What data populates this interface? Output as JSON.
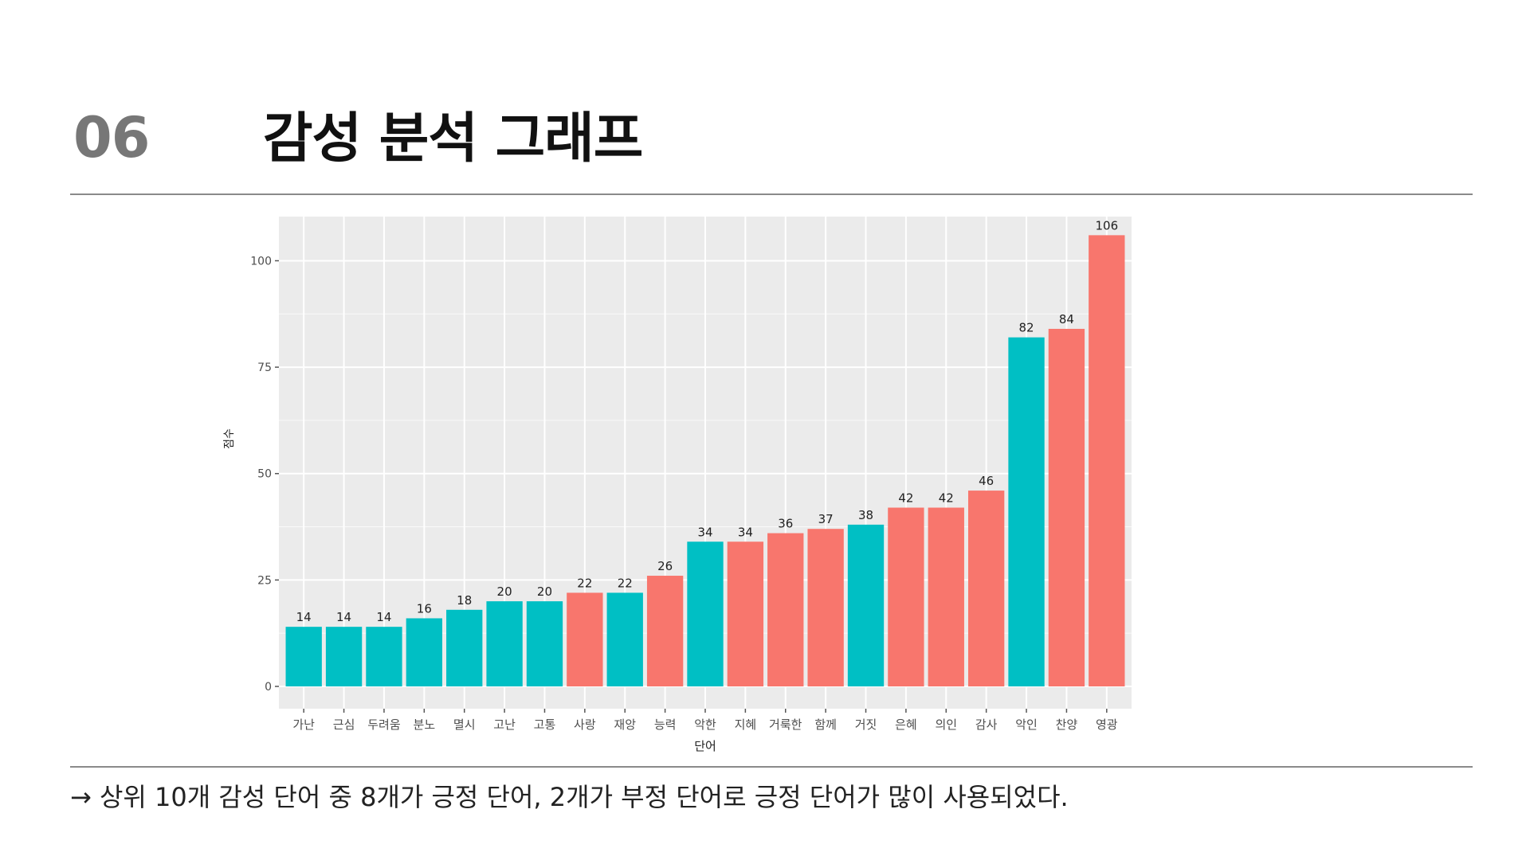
{
  "header": {
    "number": "06",
    "title": "감성 분석 그래프"
  },
  "caption": "→ 상위 10개 감성 단어 중 8개가 긍정 단어, 2개가 부정 단어로 긍정 단어가 많이 사용되었다.",
  "colors": {
    "negative": "#00BFC4",
    "positive": "#F8766D",
    "panel_bg": "#EBEBEB",
    "grid": "#FFFFFF"
  },
  "chart_data": {
    "type": "bar",
    "xlabel": "단어",
    "ylabel": "점수",
    "ylim": [
      0,
      110
    ],
    "yticks": [
      0,
      25,
      50,
      75,
      100
    ],
    "grid": true,
    "legend": "none",
    "categories": [
      "가난",
      "근심",
      "두려움",
      "분노",
      "멸시",
      "고난",
      "고통",
      "사랑",
      "재앙",
      "능력",
      "악한",
      "지혜",
      "거룩한",
      "함께",
      "거짓",
      "은혜",
      "의인",
      "감사",
      "악인",
      "찬양",
      "영광"
    ],
    "values": [
      14,
      14,
      14,
      16,
      18,
      20,
      20,
      22,
      22,
      26,
      34,
      34,
      36,
      37,
      38,
      42,
      42,
      46,
      82,
      84,
      106
    ],
    "sentiment": [
      "negative",
      "negative",
      "negative",
      "negative",
      "negative",
      "negative",
      "negative",
      "positive",
      "negative",
      "positive",
      "negative",
      "positive",
      "positive",
      "positive",
      "negative",
      "positive",
      "positive",
      "positive",
      "negative",
      "positive",
      "positive"
    ]
  }
}
